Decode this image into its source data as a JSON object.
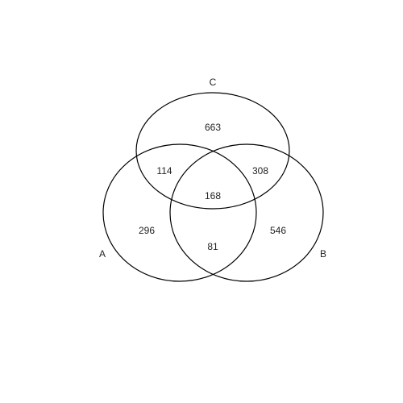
{
  "chart_data": {
    "type": "venn",
    "sets": [
      {
        "key": "A",
        "label": "A"
      },
      {
        "key": "B",
        "label": "B"
      },
      {
        "key": "C",
        "label": "C"
      }
    ],
    "regions": {
      "a_only": "296",
      "b_only": "546",
      "c_only": "663",
      "ab_only": "81",
      "ac_only": "114",
      "bc_only": "308",
      "abc": "168"
    },
    "values": {
      "a_only": 296,
      "b_only": 546,
      "c_only": 663,
      "ab_only": 81,
      "ac_only": 114,
      "bc_only": 308,
      "abc": 168
    }
  },
  "colors": {
    "stroke": "#000000",
    "text": "#222222",
    "background": "#ffffff"
  }
}
